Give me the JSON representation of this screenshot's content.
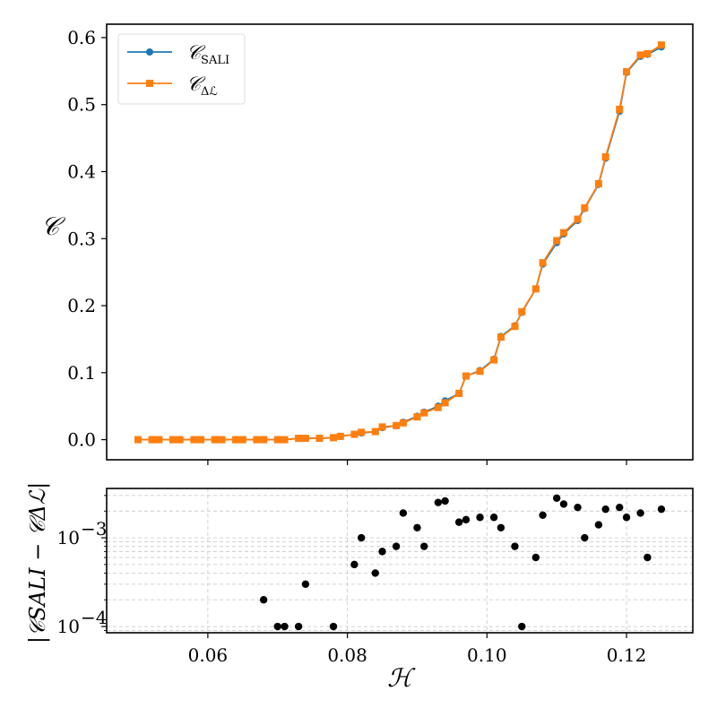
{
  "chart_data": [
    {
      "type": "line",
      "ylabel": "𝒞",
      "xlim": [
        0.0455,
        0.1295
      ],
      "ylim": [
        -0.03,
        0.62
      ],
      "yticks": [
        0.0,
        0.1,
        0.2,
        0.3,
        0.4,
        0.5,
        0.6
      ],
      "ytick_labels": [
        "0.0",
        "0.1",
        "0.2",
        "0.3",
        "0.4",
        "0.5",
        "0.6"
      ],
      "xticks": [
        0.06,
        0.08,
        0.1,
        0.12
      ],
      "grid": false,
      "legend": {
        "placement": "top-left",
        "entries": [
          {
            "main": "𝒞",
            "sub": "SALI"
          },
          {
            "main": "𝒞",
            "sub": "Δℒ"
          }
        ]
      },
      "series": [
        {
          "name": "𝒞 SALI",
          "color": "#1f77b4",
          "marker": "circle",
          "x": [
            0.05,
            0.052,
            0.053,
            0.055,
            0.056,
            0.058,
            0.059,
            0.061,
            0.062,
            0.064,
            0.065,
            0.067,
            0.068,
            0.07,
            0.071,
            0.073,
            0.074,
            0.076,
            0.078,
            0.079,
            0.081,
            0.082,
            0.084,
            0.085,
            0.087,
            0.088,
            0.09,
            0.091,
            0.093,
            0.094,
            0.096,
            0.097,
            0.099,
            0.101,
            0.102,
            0.104,
            0.105,
            0.107,
            0.108,
            0.11,
            0.111,
            0.113,
            0.114,
            0.116,
            0.117,
            0.119,
            0.12,
            0.122,
            0.123,
            0.125
          ],
          "values": [
            0.0,
            0.0,
            0.0,
            0.0,
            0.0,
            0.0,
            0.0,
            0.0,
            0.0,
            0.0,
            0.0,
            0.0,
            0.0,
            0.0,
            0.0,
            0.002,
            0.002,
            0.002,
            0.003,
            0.005,
            0.008,
            0.01,
            0.012,
            0.018,
            0.021,
            0.026,
            0.035,
            0.041,
            0.05,
            0.058,
            0.069,
            0.095,
            0.103,
            0.12,
            0.154,
            0.17,
            0.19,
            0.225,
            0.262,
            0.294,
            0.307,
            0.327,
            0.345,
            0.381,
            0.42,
            0.49,
            0.548,
            0.572,
            0.575,
            0.586
          ]
        },
        {
          "name": "𝒞 Δℒ",
          "color": "#ff7f0e",
          "marker": "square",
          "x": [
            0.05,
            0.052,
            0.053,
            0.055,
            0.056,
            0.058,
            0.059,
            0.061,
            0.062,
            0.064,
            0.065,
            0.067,
            0.068,
            0.07,
            0.071,
            0.073,
            0.074,
            0.076,
            0.078,
            0.079,
            0.081,
            0.082,
            0.084,
            0.085,
            0.087,
            0.088,
            0.09,
            0.091,
            0.093,
            0.094,
            0.096,
            0.097,
            0.099,
            0.101,
            0.102,
            0.104,
            0.105,
            0.107,
            0.108,
            0.11,
            0.111,
            0.113,
            0.114,
            0.116,
            0.117,
            0.119,
            0.12,
            0.122,
            0.123,
            0.125
          ],
          "values": [
            0.0,
            0.0,
            0.0,
            0.0,
            0.0,
            0.0,
            0.0,
            0.0,
            0.0,
            0.0,
            0.0,
            0.0,
            0.0,
            0.0,
            0.0,
            0.002,
            0.002,
            0.002,
            0.003,
            0.005,
            0.008,
            0.011,
            0.012,
            0.019,
            0.021,
            0.025,
            0.034,
            0.04,
            0.048,
            0.055,
            0.069,
            0.095,
            0.102,
            0.119,
            0.153,
            0.169,
            0.191,
            0.225,
            0.264,
            0.297,
            0.309,
            0.329,
            0.346,
            0.382,
            0.422,
            0.493,
            0.549,
            0.574,
            0.576,
            0.589
          ]
        }
      ]
    },
    {
      "type": "scatter",
      "xlabel": "ℋ",
      "ylabel": "|𝒞SALI − 𝒞Δℒ|",
      "yscale": "log",
      "xlim": [
        0.0455,
        0.1295
      ],
      "ylim": [
        8.5e-05,
        0.0036
      ],
      "xticks": [
        0.06,
        0.08,
        0.1,
        0.12
      ],
      "xtick_labels": [
        "0.06",
        "0.08",
        "0.10",
        "0.12"
      ],
      "yticks_major": [
        0.0001,
        0.001
      ],
      "ytick_labels": [
        "10",
        "10"
      ],
      "ytick_exponents": [
        "−4",
        "−3"
      ],
      "grid": true,
      "color": "#000000",
      "x": [
        0.068,
        0.07,
        0.071,
        0.073,
        0.074,
        0.078,
        0.081,
        0.082,
        0.084,
        0.085,
        0.087,
        0.088,
        0.09,
        0.091,
        0.093,
        0.094,
        0.096,
        0.097,
        0.099,
        0.101,
        0.102,
        0.104,
        0.105,
        0.107,
        0.108,
        0.11,
        0.111,
        0.113,
        0.114,
        0.116,
        0.117,
        0.119,
        0.12,
        0.122,
        0.123,
        0.125
      ],
      "values": [
        0.0002,
        0.0001,
        0.0001,
        0.0001,
        0.0003,
        0.0001,
        0.0005,
        0.001,
        0.0004,
        0.0007,
        0.0008,
        0.0019,
        0.0013,
        0.0008,
        0.0025,
        0.0026,
        0.0015,
        0.0016,
        0.0017,
        0.0017,
        0.0013,
        0.0008,
        0.0001,
        0.0006,
        0.0018,
        0.0028,
        0.0024,
        0.0022,
        0.001,
        0.0014,
        0.0021,
        0.0022,
        0.0017,
        0.0019,
        0.0006,
        0.0021
      ]
    }
  ]
}
